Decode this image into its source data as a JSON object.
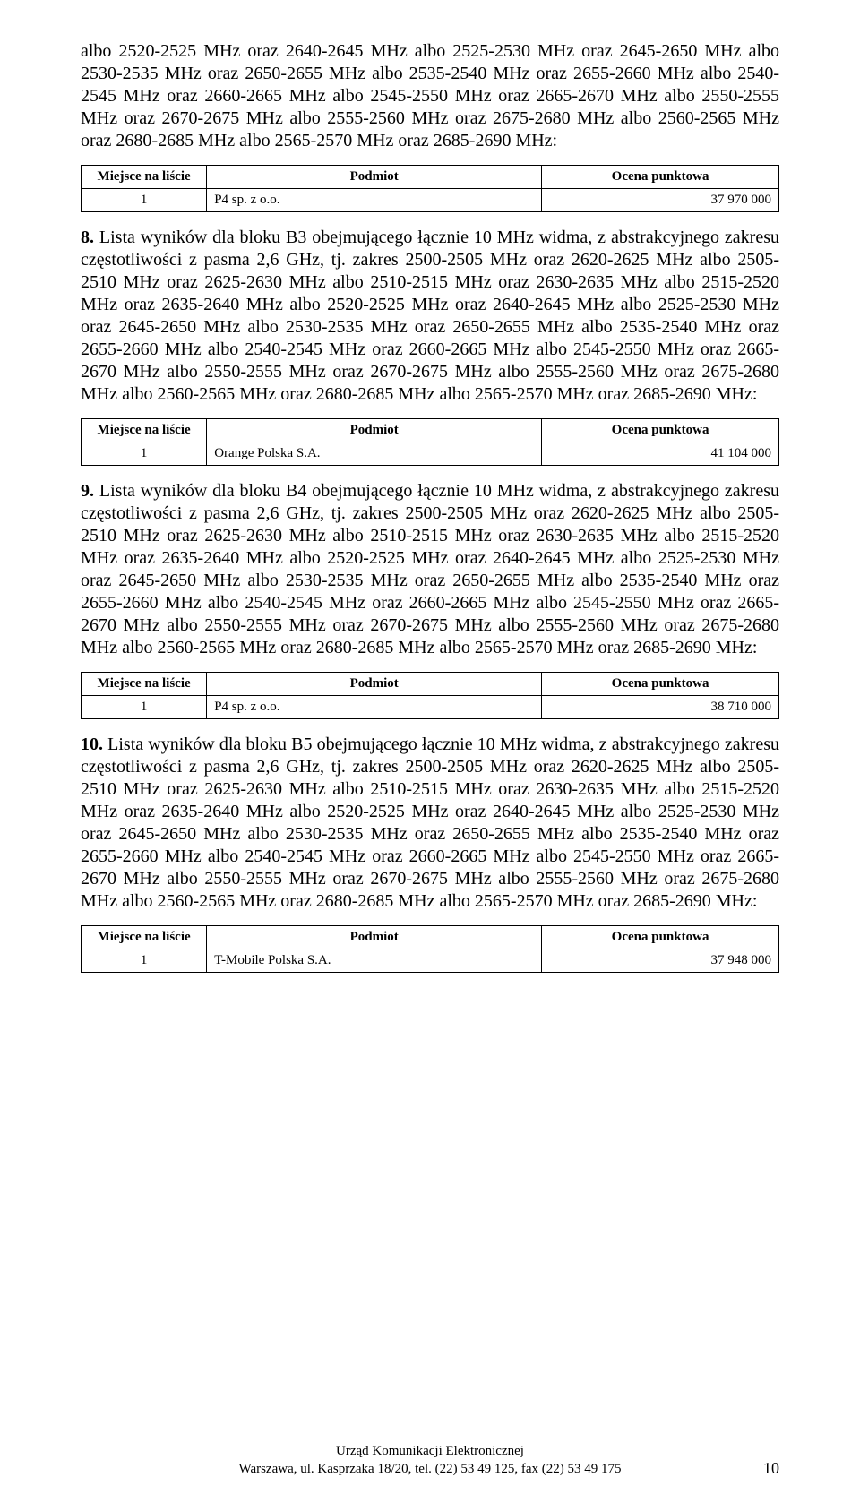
{
  "para_top": "albo 2520-2525 MHz oraz 2640-2645 MHz albo 2525-2530 MHz oraz 2645-2650 MHz albo 2530-2535 MHz oraz 2650-2655 MHz albo 2535-2540 MHz oraz 2655-2660 MHz albo 2540-2545 MHz oraz 2660-2665 MHz albo 2545-2550 MHz oraz 2665-2670 MHz albo 2550-2555 MHz oraz 2670-2675 MHz albo 2555-2560 MHz oraz 2675-2680 MHz albo 2560-2565 MHz oraz 2680-2685 MHz albo 2565-2570 MHz oraz 2685-2690 MHz:",
  "table_headers": {
    "place": "Miejsce na liście",
    "entity": "Podmiot",
    "score": "Ocena punktowa"
  },
  "tables": {
    "t1": {
      "place": "1",
      "entity": "P4 sp. z o.o.",
      "score": "37 970 000"
    },
    "t2": {
      "place": "1",
      "entity": "Orange Polska S.A.",
      "score": "41 104 000"
    },
    "t3": {
      "place": "1",
      "entity": "P4 sp. z o.o.",
      "score": "38 710 000"
    },
    "t4": {
      "place": "1",
      "entity": "T-Mobile Polska S.A.",
      "score": "37 948 000"
    }
  },
  "para8_bold": "8.",
  "para8_rest": " Lista wyników dla bloku B3 obejmującego łącznie 10 MHz widma, z abstrakcyjnego zakresu częstotliwości z pasma 2,6 GHz, tj. zakres 2500-2505 MHz oraz 2620-2625 MHz albo 2505-2510 MHz oraz 2625-2630 MHz albo 2510-2515 MHz oraz 2630-2635 MHz albo 2515-2520 MHz oraz 2635-2640 MHz albo 2520-2525 MHz oraz 2640-2645 MHz albo 2525-2530 MHz oraz 2645-2650 MHz albo 2530-2535 MHz oraz 2650-2655 MHz albo 2535-2540 MHz oraz 2655-2660 MHz albo 2540-2545 MHz oraz 2660-2665 MHz albo 2545-2550 MHz oraz 2665-2670 MHz albo 2550-2555 MHz oraz 2670-2675 MHz albo 2555-2560 MHz oraz 2675-2680 MHz albo 2560-2565 MHz oraz 2680-2685 MHz albo 2565-2570 MHz oraz 2685-2690 MHz:",
  "para9_bold": "9.",
  "para9_rest": " Lista wyników dla bloku B4 obejmującego łącznie 10 MHz widma, z abstrakcyjnego zakresu częstotliwości z pasma 2,6 GHz, tj. zakres 2500-2505 MHz oraz 2620-2625 MHz albo 2505-2510 MHz oraz 2625-2630 MHz albo 2510-2515 MHz oraz 2630-2635 MHz albo 2515-2520 MHz oraz 2635-2640 MHz albo 2520-2525 MHz oraz 2640-2645 MHz albo 2525-2530 MHz oraz 2645-2650 MHz albo 2530-2535 MHz oraz 2650-2655 MHz albo 2535-2540 MHz oraz 2655-2660 MHz albo 2540-2545 MHz oraz 2660-2665 MHz albo 2545-2550 MHz oraz 2665-2670 MHz albo 2550-2555 MHz oraz 2670-2675 MHz albo 2555-2560 MHz oraz 2675-2680 MHz albo 2560-2565 MHz oraz 2680-2685 MHz albo 2565-2570 MHz oraz 2685-2690 MHz:",
  "para10_bold": "10.",
  "para10_rest": " Lista wyników dla bloku B5 obejmującego łącznie 10 MHz widma, z abstrakcyjnego zakresu częstotliwości z pasma 2,6 GHz, tj. zakres 2500-2505 MHz oraz 2620-2625 MHz albo 2505-2510 MHz oraz 2625-2630 MHz albo 2510-2515 MHz oraz 2630-2635 MHz albo 2515-2520 MHz oraz 2635-2640 MHz albo 2520-2525 MHz oraz 2640-2645 MHz albo 2525-2530 MHz oraz 2645-2650 MHz albo 2530-2535 MHz oraz 2650-2655 MHz albo 2535-2540 MHz oraz 2655-2660 MHz albo 2540-2545 MHz oraz 2660-2665 MHz albo 2545-2550 MHz oraz 2665-2670 MHz albo 2550-2555 MHz oraz 2670-2675 MHz albo 2555-2560 MHz oraz 2675-2680 MHz albo 2560-2565 MHz oraz 2680-2685 MHz albo 2565-2570 MHz oraz 2685-2690 MHz:",
  "footer_line1": "Urząd Komunikacji Elektronicznej",
  "footer_line2": "Warszawa, ul. Kasprzaka 18/20, tel. (22) 53 49 125, fax (22) 53 49 175",
  "page_number": "10"
}
